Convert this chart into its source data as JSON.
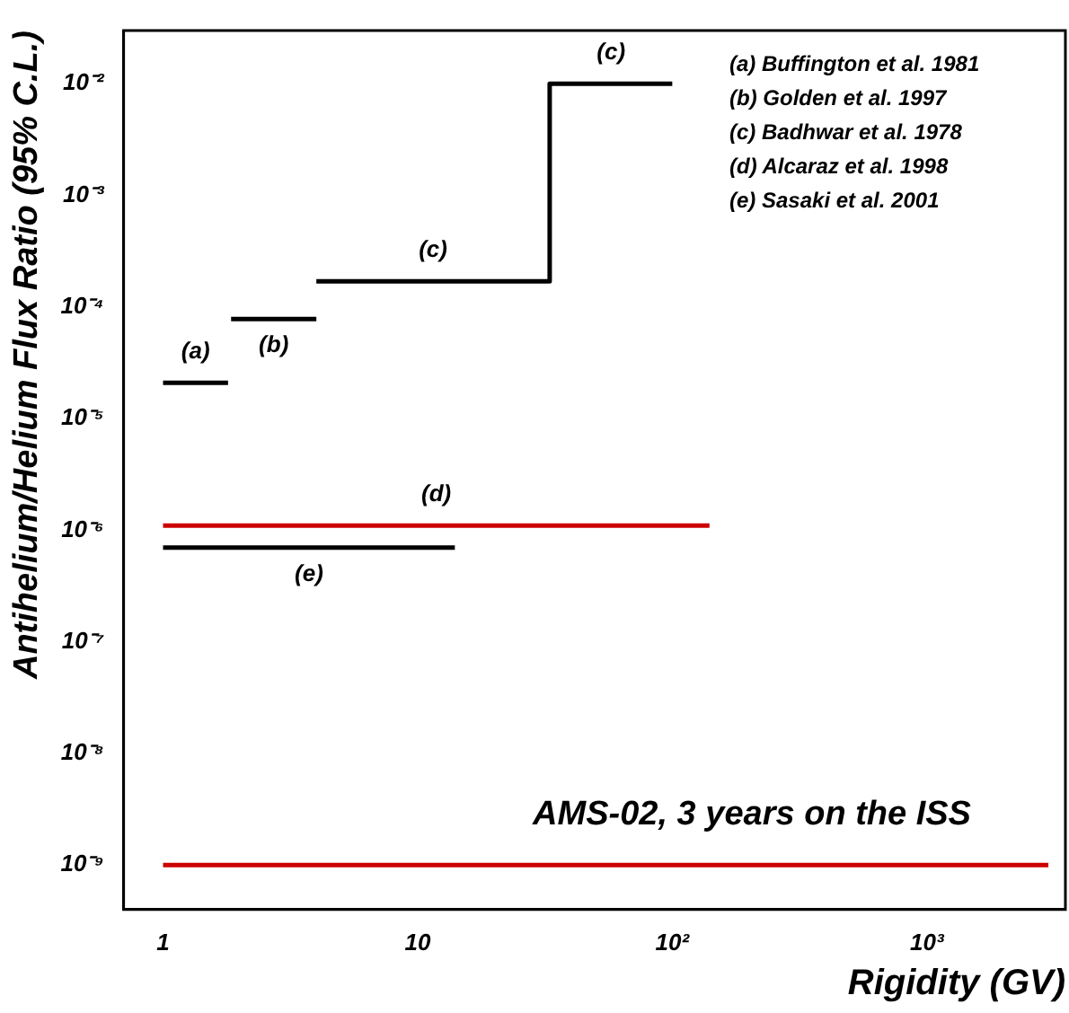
{
  "chart_data": {
    "type": "line",
    "xlabel": "Rigidity (GV)",
    "ylabel": "Antihelium/Helium Flux Ratio (95% C.L.)",
    "log": "xy",
    "xlim": [
      0.7,
      3500
    ],
    "ylim": [
      4e-10,
      0.03
    ],
    "xticks": [
      1,
      10,
      {
        "value": 100,
        "label": "10²"
      },
      {
        "value": 1000,
        "label": "10³"
      }
    ],
    "yticks": [
      {
        "value": 1e-09,
        "label": "10⁻⁹"
      },
      {
        "value": 1e-08,
        "label": "10⁻⁸"
      },
      {
        "value": 1e-07,
        "label": "10⁻⁷"
      },
      {
        "value": 1e-06,
        "label": "10⁻⁶"
      },
      {
        "value": 1e-05,
        "label": "10⁻⁵"
      },
      {
        "value": 0.0001,
        "label": "10⁻⁴"
      },
      {
        "value": 0.001,
        "label": "10⁻³"
      },
      {
        "value": 0.01,
        "label": "10⁻²"
      }
    ],
    "grid": false,
    "legend": false,
    "marker": "none",
    "line_style": "solid",
    "series": [
      {
        "name": "(a)",
        "color": "#000000",
        "x": [
          1,
          1.8
        ],
        "values": [
          2.1e-05,
          2.1e-05
        ]
      },
      {
        "name": "(b)",
        "color": "#000000",
        "x": [
          1.85,
          4
        ],
        "values": [
          7.8e-05,
          7.8e-05
        ]
      },
      {
        "name": "(c)",
        "color": "#000000",
        "x": [
          4,
          33,
          33,
          100
        ],
        "values": [
          0.00017,
          0.00017,
          0.01,
          0.01
        ]
      },
      {
        "name": "(d)",
        "color": "#cc0000",
        "x": [
          1,
          140
        ],
        "values": [
          1.1e-06,
          1.1e-06
        ]
      },
      {
        "name": "(e)",
        "color": "#000000",
        "x": [
          1,
          14
        ],
        "values": [
          7e-07,
          7e-07
        ]
      },
      {
        "name": "AMS-02, 3 years on the ISS",
        "color": "#cc0000",
        "x": [
          1,
          3000
        ],
        "values": [
          1e-09,
          1e-09
        ]
      }
    ],
    "annotations": [
      "(a) Buffington et al. 1981",
      "(b) Golden et al. 1997",
      "(c) Badhwar et al. 1978",
      "(d) Alcaraz et al. 1998",
      "(e) Sasaki et al. 2001"
    ]
  }
}
